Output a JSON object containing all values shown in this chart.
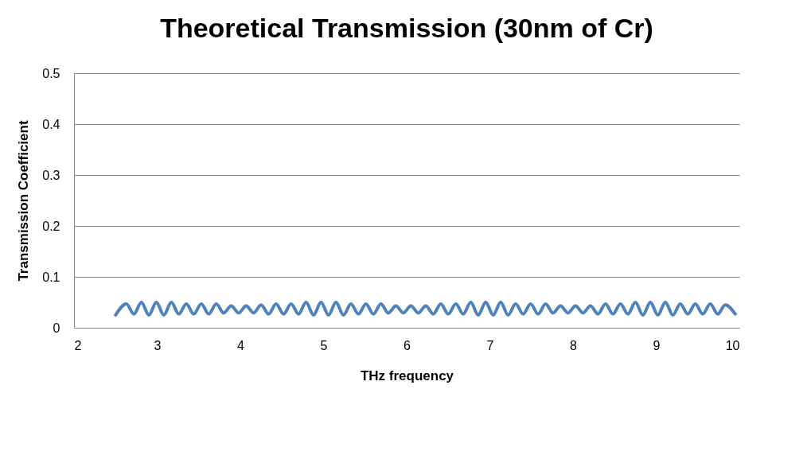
{
  "chart_data": {
    "type": "line",
    "title": "Theoretical Transmission (30nm of Cr)",
    "xlabel": "THz frequency",
    "ylabel": "Transmission Coefficient",
    "x": [
      2.5,
      2.63,
      2.72,
      2.81,
      2.9,
      2.99,
      3.08,
      3.17,
      3.26,
      3.35,
      3.44,
      3.53,
      3.62,
      3.71,
      3.8,
      3.89,
      3.98,
      4.07,
      4.16,
      4.25,
      4.34,
      4.43,
      4.52,
      4.61,
      4.7,
      4.79,
      4.88,
      4.97,
      5.06,
      5.15,
      5.24,
      5.33,
      5.42,
      5.51,
      5.6,
      5.69,
      5.78,
      5.87,
      5.96,
      6.05,
      6.14,
      6.23,
      6.32,
      6.41,
      6.5,
      6.59,
      6.68,
      6.77,
      6.86,
      6.95,
      7.04,
      7.13,
      7.22,
      7.31,
      7.4,
      7.49,
      7.58,
      7.67,
      7.76,
      7.85,
      7.94,
      8.03,
      8.12,
      8.21,
      8.3,
      8.39,
      8.48,
      8.57,
      8.66,
      8.75,
      8.84,
      8.93,
      9.02,
      9.11,
      9.2,
      9.29,
      9.38,
      9.47,
      9.56,
      9.65,
      9.74,
      9.83,
      9.95
    ],
    "series": [
      {
        "color": "#4f81bd",
        "values": [
          0.025,
          0.047,
          0.027,
          0.05,
          0.025,
          0.05,
          0.025,
          0.05,
          0.027,
          0.047,
          0.027,
          0.047,
          0.027,
          0.047,
          0.029,
          0.043,
          0.029,
          0.043,
          0.029,
          0.045,
          0.027,
          0.047,
          0.027,
          0.047,
          0.027,
          0.05,
          0.025,
          0.05,
          0.025,
          0.05,
          0.025,
          0.047,
          0.027,
          0.047,
          0.027,
          0.047,
          0.029,
          0.043,
          0.029,
          0.043,
          0.029,
          0.043,
          0.027,
          0.047,
          0.027,
          0.047,
          0.027,
          0.05,
          0.025,
          0.05,
          0.025,
          0.05,
          0.025,
          0.047,
          0.027,
          0.047,
          0.027,
          0.047,
          0.029,
          0.043,
          0.029,
          0.043,
          0.029,
          0.043,
          0.027,
          0.047,
          0.027,
          0.047,
          0.027,
          0.05,
          0.025,
          0.05,
          0.025,
          0.05,
          0.025,
          0.047,
          0.027,
          0.047,
          0.027,
          0.047,
          0.027,
          0.045,
          0.027
        ]
      }
    ],
    "xlim": [
      2,
      10
    ],
    "xticks": [
      2,
      3,
      4,
      5,
      6,
      7,
      8,
      9,
      10
    ],
    "ylim": [
      0,
      0.5
    ],
    "yticks": [
      0,
      0.1,
      0.2,
      0.3,
      0.4,
      0.5
    ],
    "grid": "y",
    "marker": "none",
    "line_style": "solid"
  }
}
